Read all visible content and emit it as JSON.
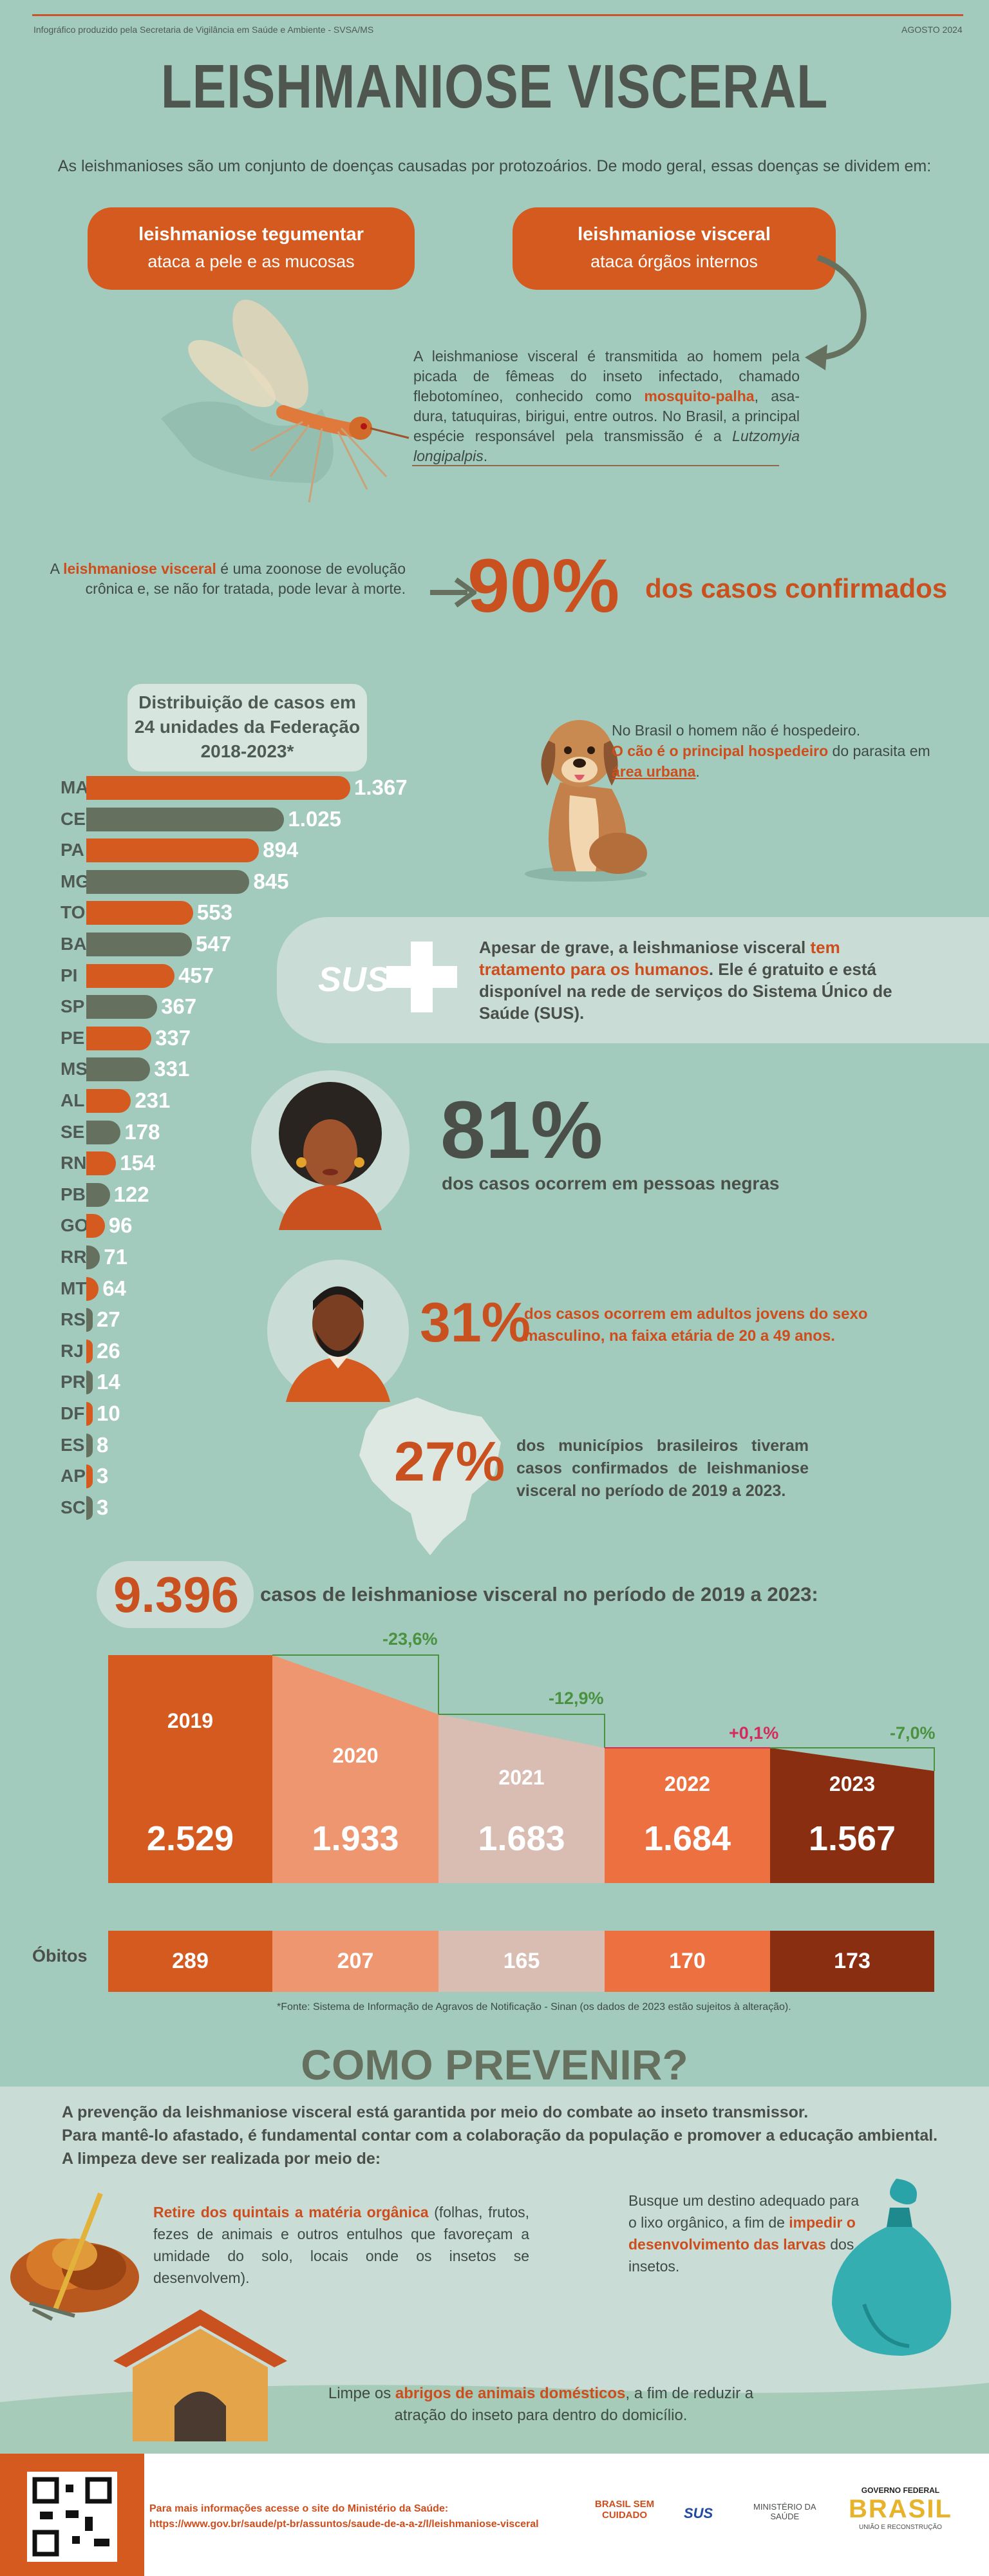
{
  "header": {
    "credit": "Infográfico produzido pela Secretaria de Vigilância em Saúde e Ambiente - SVSA/MS",
    "date": "AGOSTO 2024"
  },
  "title": "LEISHMANIOSE VISCERAL",
  "intro": "As leishmanioses são um conjunto de doenças causadas por protozoários. De modo geral, essas doenças se dividem em:",
  "types": [
    {
      "name": "leishmaniose tegumentar",
      "desc": "ataca a pele e as mucosas"
    },
    {
      "name": "leishmaniose visceral",
      "desc": "ataca órgãos internos"
    }
  ],
  "transmission": {
    "p1": "A leishmaniose visceral é transmitida ao homem pela picada de fêmeas do inseto infectado, chamado flebotomíneo, conhecido como ",
    "highlight": "mosquito-palha",
    "p2": ", asa-dura, tatuquiras, birigui, entre outros. No Brasil, a principal espécie responsável pela transmissão é a ",
    "species": "Lutzomyia longipalpis",
    "end": "."
  },
  "zoonosis": {
    "p1": "A ",
    "highlight": "leishmaniose visceral",
    "p2": " é uma zoonose de evolução crônica e, se não for tratada, pode levar à morte.",
    "percent": "90%",
    "label": "dos casos confirmados"
  },
  "distribution": {
    "title_l1": "Distribuição de casos em",
    "title_l2": "24 unidades da Federação",
    "title_l3": "2018-2023*"
  },
  "chart_data": {
    "type": "bar",
    "orientation": "horizontal",
    "title": "Distribuição de casos em 24 unidades da Federação 2018-2023*",
    "categories": [
      "MA",
      "CE",
      "PA",
      "MG",
      "TO",
      "BA",
      "PI",
      "SP",
      "PE",
      "MS",
      "AL",
      "SE",
      "RN",
      "PB",
      "GO",
      "RR",
      "MT",
      "RS",
      "RJ",
      "PR",
      "DF",
      "ES",
      "AP",
      "SC"
    ],
    "values": [
      1367,
      1025,
      894,
      845,
      553,
      547,
      457,
      367,
      337,
      331,
      231,
      178,
      154,
      122,
      96,
      71,
      64,
      27,
      26,
      14,
      10,
      8,
      3,
      3
    ],
    "labels": [
      "1.367",
      "1.025",
      "894",
      "845",
      "553",
      "547",
      "457",
      "367",
      "337",
      "331",
      "231",
      "178",
      "154",
      "122",
      "96",
      "71",
      "64",
      "27",
      "26",
      "14",
      "10",
      "8",
      "3",
      "3"
    ],
    "colors": [
      "#d45a1f",
      "#66705f"
    ]
  },
  "dog": {
    "p1": "No Brasil o homem não é hospedeiro.",
    "h1": "O cão é o principal hospedeiro",
    "p2": " do parasita em ",
    "h2": "área urbana",
    "p3": "."
  },
  "sus": {
    "logo": "SUS",
    "p1": "Apesar de grave, a leishmaniose visceral ",
    "highlight": "tem tratamento para os humanos",
    "p2": ". Ele é gratuito e está disponível na rede de serviços do Sistema Único de Saúde (SUS)."
  },
  "stats": {
    "black_pct": "81%",
    "black_label": "dos casos ocorrem em pessoas negras",
    "male_pct": "31%",
    "male_label": "dos casos ocorrem em adultos jovens do sexo masculino, na faixa etária de 20 a 49 anos.",
    "muni_pct": "27%",
    "muni_label": "dos municípios brasileiros tiveram casos confirmados de leishmaniose visceral no período de 2019 a 2023."
  },
  "yearly": {
    "total": "9.396",
    "total_label": "casos de leishmaniose visceral no período de 2019 a 2023:",
    "years": [
      {
        "year": "2019",
        "cases": "2.529",
        "deaths": "289",
        "color": "#d45a1f"
      },
      {
        "year": "2020",
        "cases": "1.933",
        "deaths": "207",
        "color": "#ee9670"
      },
      {
        "year": "2021",
        "cases": "1.683",
        "deaths": "165",
        "color": "#d9bdb3"
      },
      {
        "year": "2022",
        "cases": "1.684",
        "deaths": "170",
        "color": "#ec7040"
      },
      {
        "year": "2023",
        "cases": "1.567",
        "deaths": "173",
        "color": "#8a2e12"
      }
    ],
    "changes": [
      "-23,6%",
      "-12,9%",
      "+0,1%",
      "-7,0%"
    ],
    "deaths_label": "Óbitos",
    "source": "*Fonte: Sistema de Informação de Agravos de Notificação - Sinan (os dados de 2023 estão sujeitos à alteração)."
  },
  "prevent": {
    "title": "COMO PREVENIR?",
    "intro_l1": "A prevenção da leishmaniose visceral está garantida por meio do combate ao inseto transmissor.",
    "intro_l2": "Para mantê-lo afastado, é fundamental contar com a colaboração da população e promover a educação ambiental.",
    "intro_l3": "A limpeza deve ser realizada por meio de:",
    "tip1_h": "Retire dos quintais a matéria orgânica",
    "tip1": " (folhas, frutos, fezes de animais e outros entulhos que favoreçam a umidade do solo, locais onde os insetos se desenvolvem).",
    "tip2_a": "Busque um destino adequado para o lixo orgânico, a fim de ",
    "tip2_h": "impedir o desenvolvimento das larvas",
    "tip2_b": " dos insetos.",
    "tip3_a": "Limpe os ",
    "tip3_h": "abrigos de animais domésticos",
    "tip3_b": ", a fim de reduzir a atração do inseto para dentro do domicílio."
  },
  "footer": {
    "info_l1": "Para mais informações acesse o site do Ministério da Saúde:",
    "info_l2": "https://www.gov.br/saude/pt-br/assuntos/saude-de-a-a-z/l/leishmaniose-visceral",
    "logo1": "BRASIL SEM CUIDADO",
    "logo2": "SUS",
    "logo3_l1": "MINISTÉRIO DA",
    "logo3_l2": "SAÚDE",
    "logo4_l1": "GOVERNO FEDERAL",
    "logo4_l2": "BRASIL",
    "logo4_l3": "UNIÃO E RECONSTRUÇÃO"
  }
}
